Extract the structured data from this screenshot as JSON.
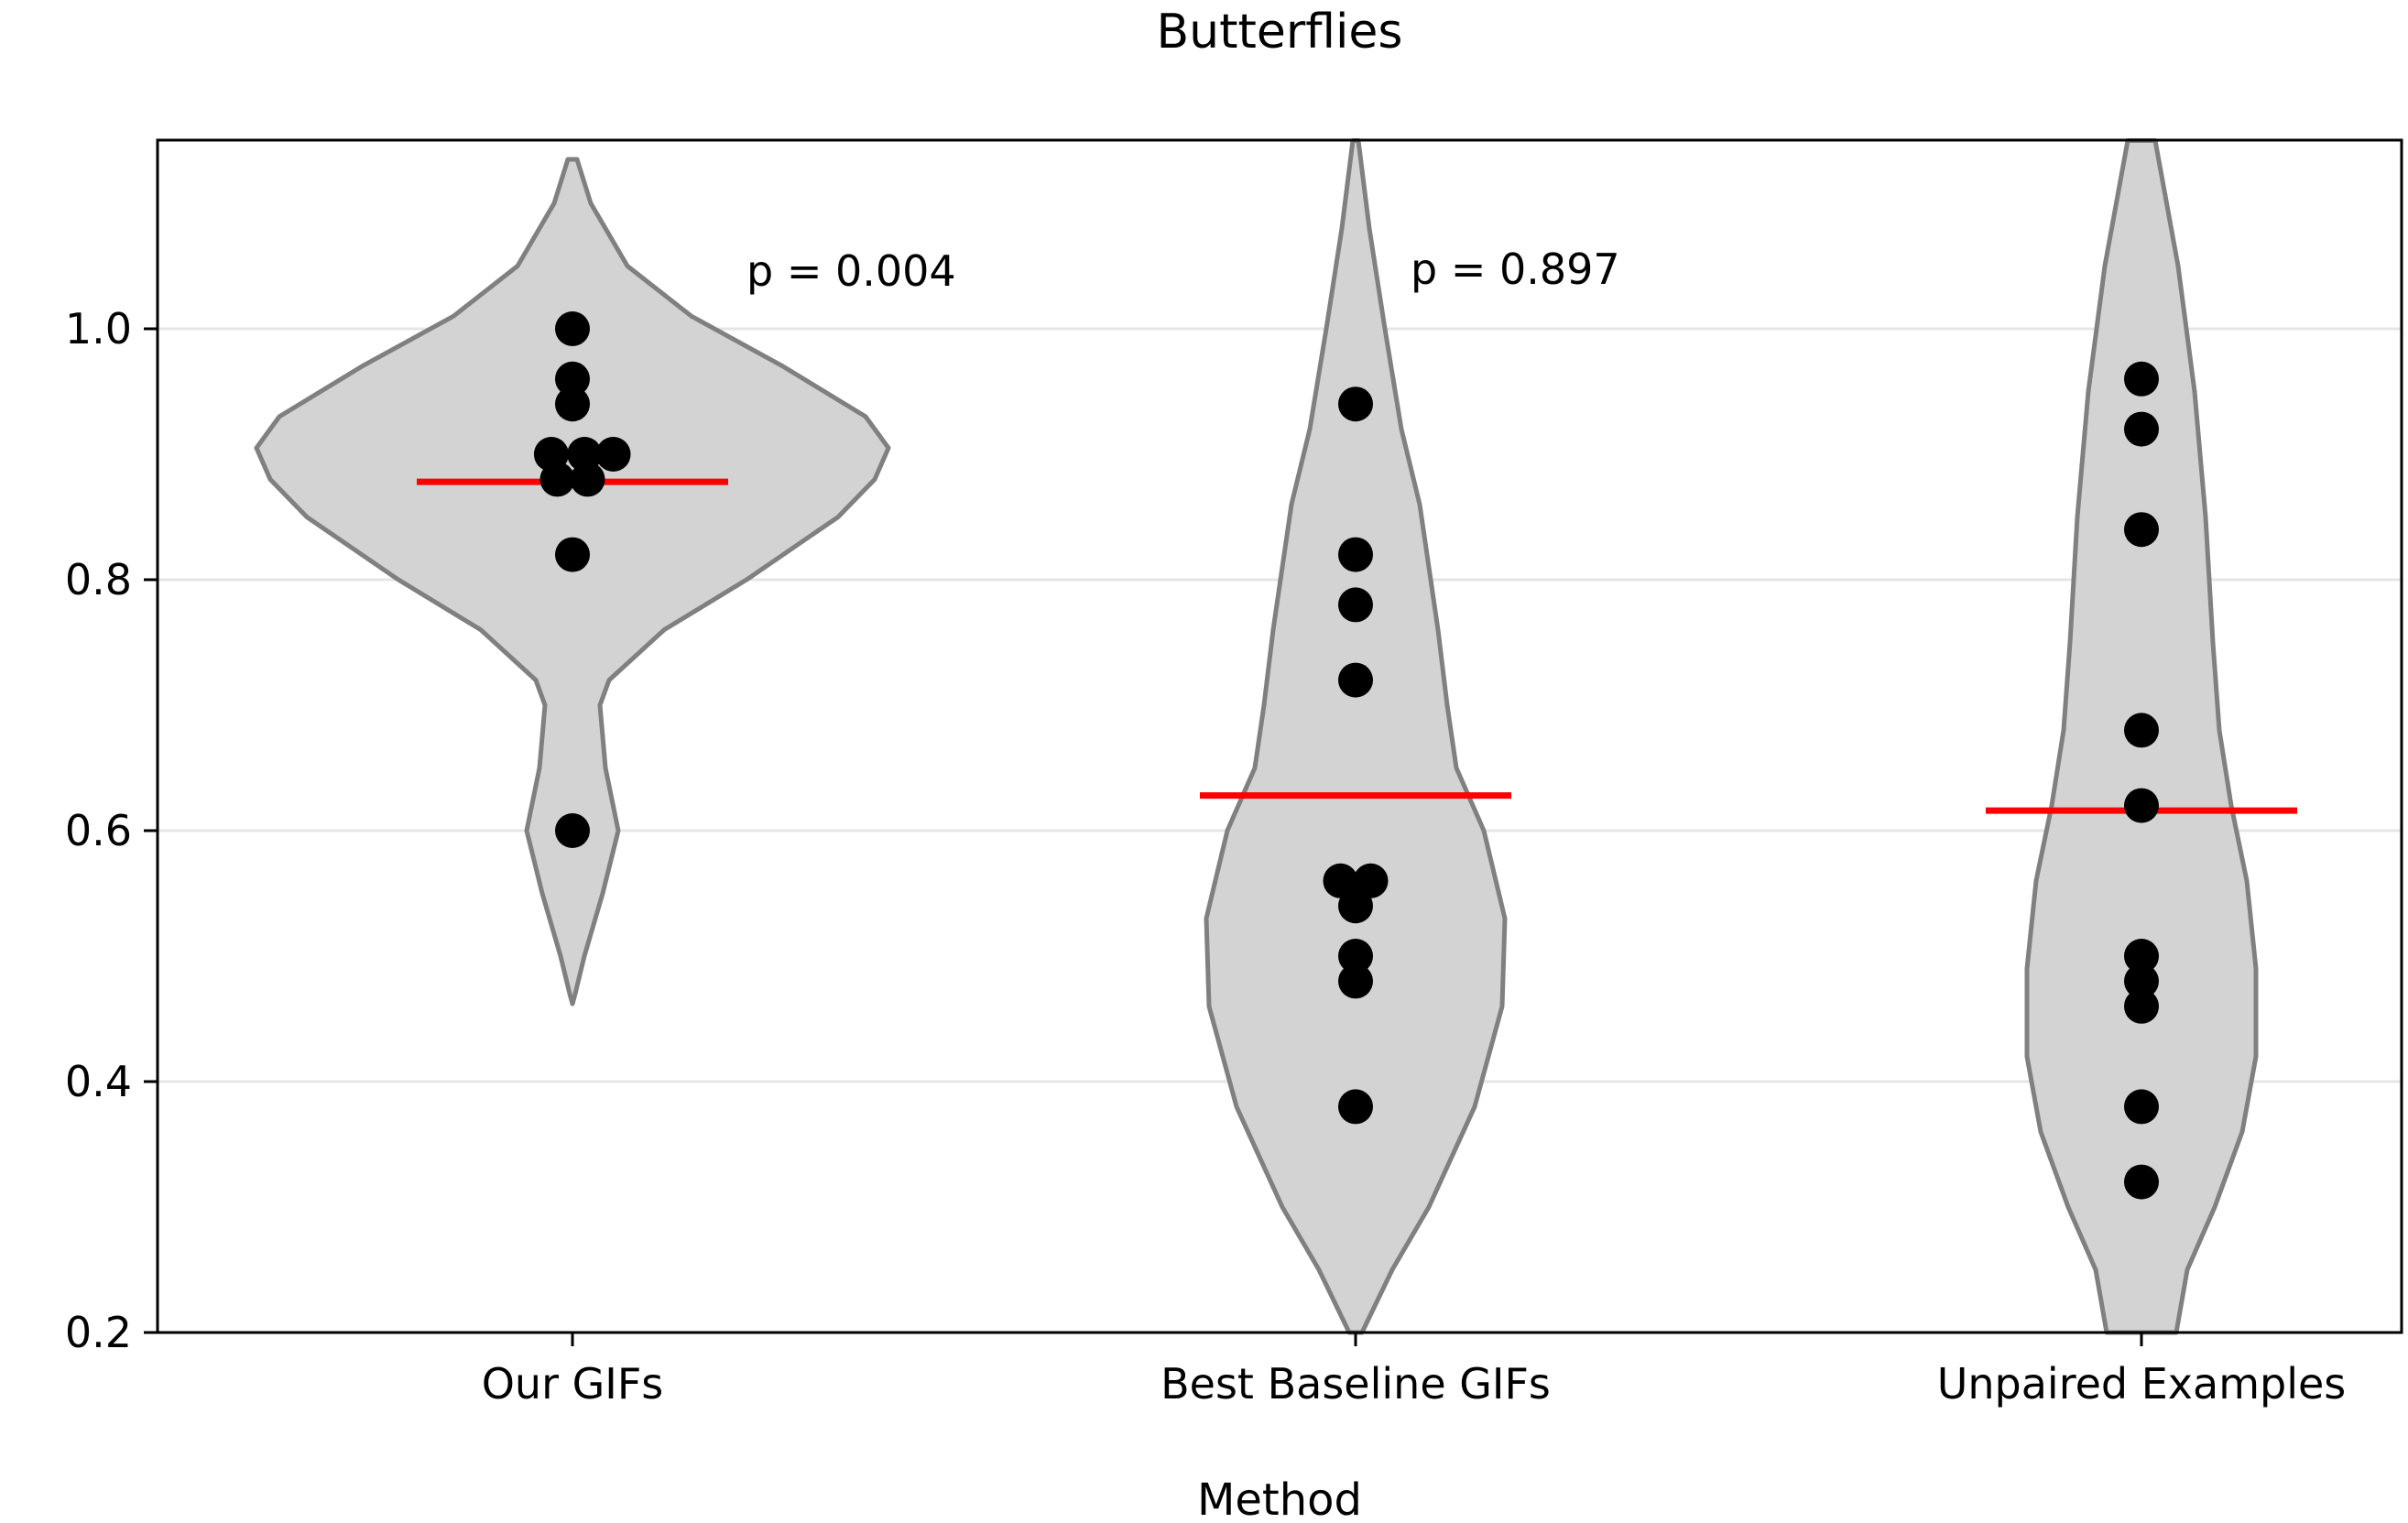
{
  "chart_data": {
    "type": "violin",
    "title": "Butterflies",
    "xlabel": "Method",
    "ylabel": "",
    "ylim": [
      0.2,
      1.15
    ],
    "yticks": [
      0.2,
      0.4,
      0.6,
      0.8,
      1.0
    ],
    "ytick_labels": [
      "0.2",
      "0.4",
      "0.6",
      "0.8",
      "1.0"
    ],
    "grid": "horizontal",
    "colors": {
      "violin_fill": "#d3d3d3",
      "violin_edge": "#808080",
      "point": "#000000",
      "mean_line": "#ff0000",
      "grid": "#e6e6e6"
    },
    "categories": [
      "Our GIFs",
      "Best Baseline GIFs",
      "Unpaired Examples"
    ],
    "groups": [
      {
        "label": "Our GIFs",
        "points": [
          1.0,
          0.96,
          0.94,
          0.9,
          0.9,
          0.9,
          0.88,
          0.88,
          0.82,
          0.6
        ],
        "mean": 0.878,
        "annotation": "p = 0.004"
      },
      {
        "label": "Best Baseline GIFs",
        "points": [
          0.94,
          0.82,
          0.78,
          0.72,
          0.56,
          0.56,
          0.54,
          0.5,
          0.48,
          0.38
        ],
        "mean": 0.628,
        "annotation": "p = 0.897"
      },
      {
        "label": "Unpaired Examples",
        "points": [
          0.96,
          0.92,
          0.84,
          0.68,
          0.62,
          0.5,
          0.48,
          0.46,
          0.38,
          0.32
        ],
        "mean": 0.616,
        "annotation": ""
      }
    ]
  }
}
